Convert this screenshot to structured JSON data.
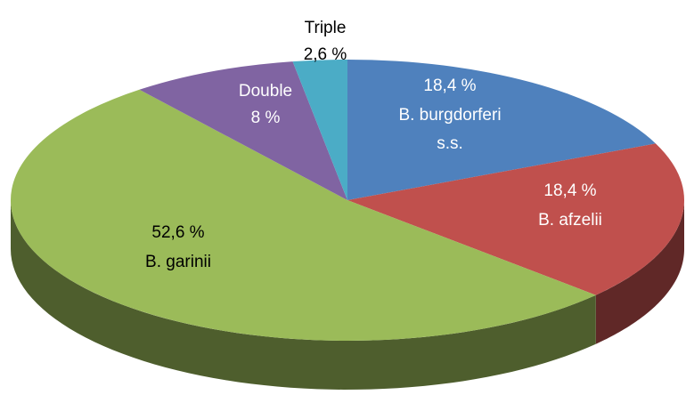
{
  "chart_data": {
    "type": "pie3d",
    "categories": [
      "B. burgdorferi s.s.",
      "B. afzelii",
      "B. garinii",
      "Double",
      "Triple"
    ],
    "values": [
      18.4,
      18.4,
      52.6,
      8,
      2.6
    ],
    "value_labels": [
      "18,4 %",
      "18,4 %",
      "52,6 %",
      "8 %",
      "2,6 %"
    ],
    "colors": [
      "#4f81bd",
      "#c0504d",
      "#9bbb59",
      "#8064a2",
      "#4bacc6"
    ]
  }
}
